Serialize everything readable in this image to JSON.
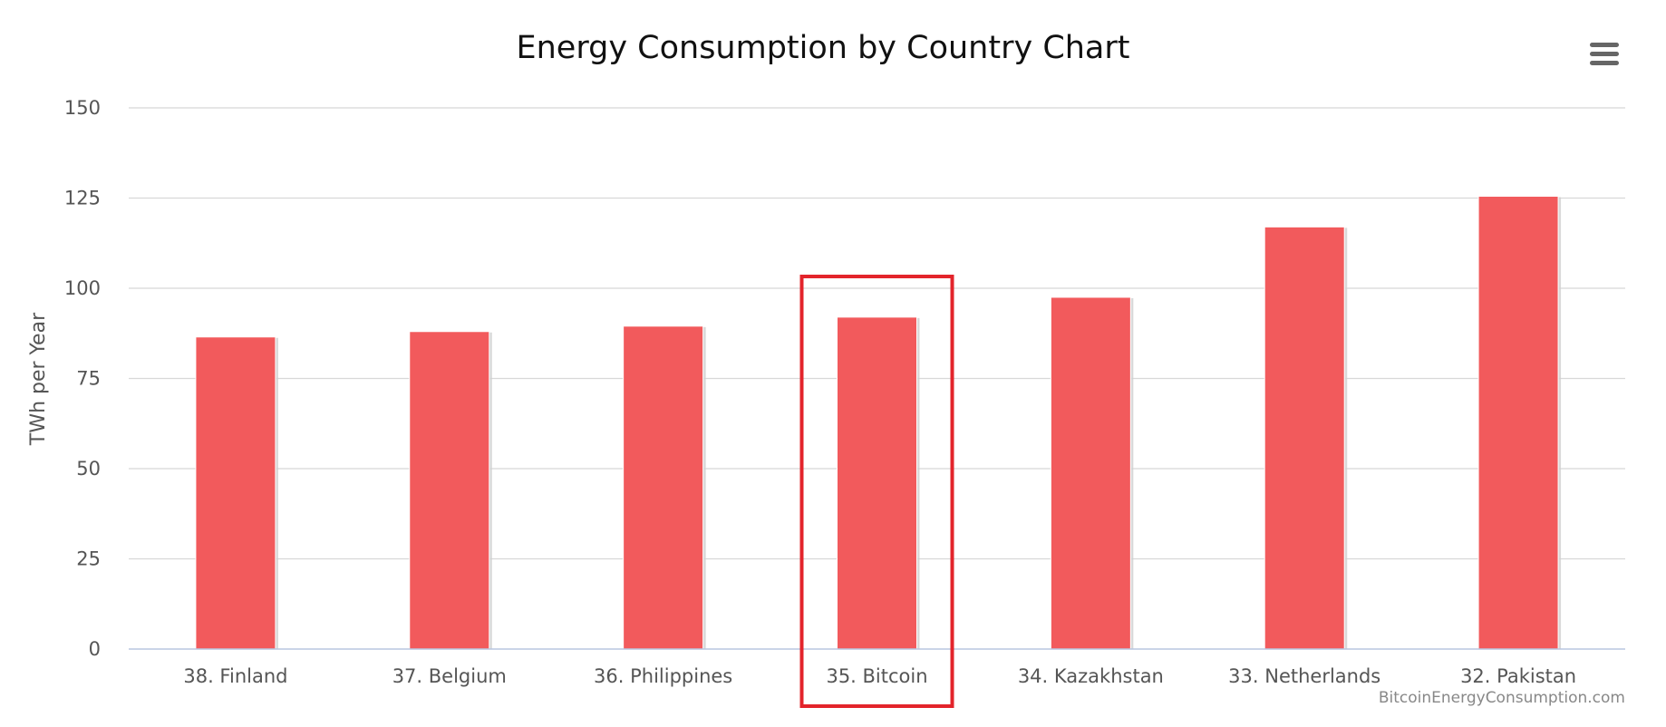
{
  "chart_data": {
    "type": "bar",
    "title": "Energy Consumption by Country Chart",
    "ylabel": "TWh per Year",
    "xlabel": "",
    "categories": [
      "38. Finland",
      "37. Belgium",
      "36. Philippines",
      "35. Bitcoin",
      "34. Kazakhstan",
      "33. Netherlands",
      "32. Pakistan"
    ],
    "values": [
      86.5,
      88,
      89.5,
      92,
      97.5,
      117,
      125.5
    ],
    "ylim": [
      0,
      150
    ],
    "yticks": [
      "0",
      "25",
      "50",
      "75",
      "100",
      "125",
      "150"
    ],
    "grid": true,
    "legend": "none",
    "bar_color": "#f25a5c",
    "highlight": {
      "category": "35. Bitcoin",
      "color": "#e3242b"
    },
    "credits": "BitcoinEnergyConsumption.com"
  },
  "toolbar": {
    "menu_icon": "hamburger-menu-icon",
    "icon_color": "#666666"
  }
}
